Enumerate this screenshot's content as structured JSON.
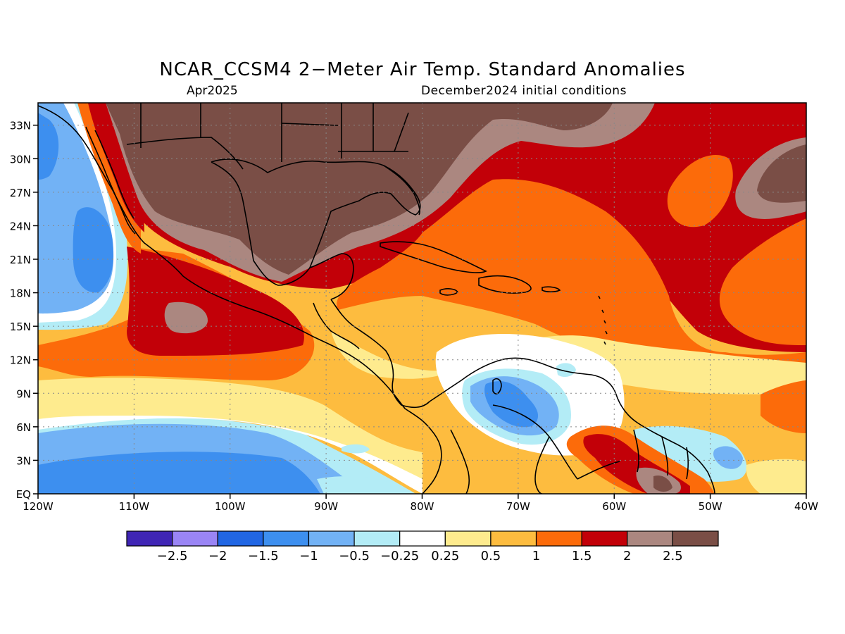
{
  "header": {
    "title": "NCAR_CCSM4 2−Meter Air Temp. Standard Anomalies",
    "valid_month": "Apr2025",
    "init": "December2024 initial conditions"
  },
  "map": {
    "region": "Central America / Caribbean",
    "lon_range": [
      -120,
      -40
    ],
    "lat_range": [
      0,
      35
    ],
    "x_ticks": [
      {
        "lon": -120,
        "label": "120W"
      },
      {
        "lon": -110,
        "label": "110W"
      },
      {
        "lon": -100,
        "label": "100W"
      },
      {
        "lon": -90,
        "label": "90W"
      },
      {
        "lon": -80,
        "label": "80W"
      },
      {
        "lon": -70,
        "label": "70W"
      },
      {
        "lon": -60,
        "label": "60W"
      },
      {
        "lon": -50,
        "label": "50W"
      },
      {
        "lon": -40,
        "label": "40W"
      }
    ],
    "y_ticks": [
      {
        "lat": 0,
        "label": "EQ"
      },
      {
        "lat": 3,
        "label": "3N"
      },
      {
        "lat": 6,
        "label": "6N"
      },
      {
        "lat": 9,
        "label": "9N"
      },
      {
        "lat": 12,
        "label": "12N"
      },
      {
        "lat": 15,
        "label": "15N"
      },
      {
        "lat": 18,
        "label": "18N"
      },
      {
        "lat": 21,
        "label": "21N"
      },
      {
        "lat": 24,
        "label": "24N"
      },
      {
        "lat": 27,
        "label": "27N"
      },
      {
        "lat": 30,
        "label": "30N"
      },
      {
        "lat": 33,
        "label": "33N"
      }
    ]
  },
  "colorbar": {
    "colors": [
      "#3f25b5",
      "#9a85f5",
      "#2166e3",
      "#3d8fef",
      "#72b2f5",
      "#b3ecf6",
      "#ffffff",
      "#feeb8e",
      "#fdbc3f",
      "#fc6b0a",
      "#c20008",
      "#ab8780",
      "#7a4e46"
    ],
    "labels": [
      "−2.5",
      "−2",
      "−1.5",
      "−1",
      "−0.5",
      "−0.25",
      "0.25",
      "0.5",
      "1",
      "1.5",
      "2",
      "2.5"
    ]
  }
}
